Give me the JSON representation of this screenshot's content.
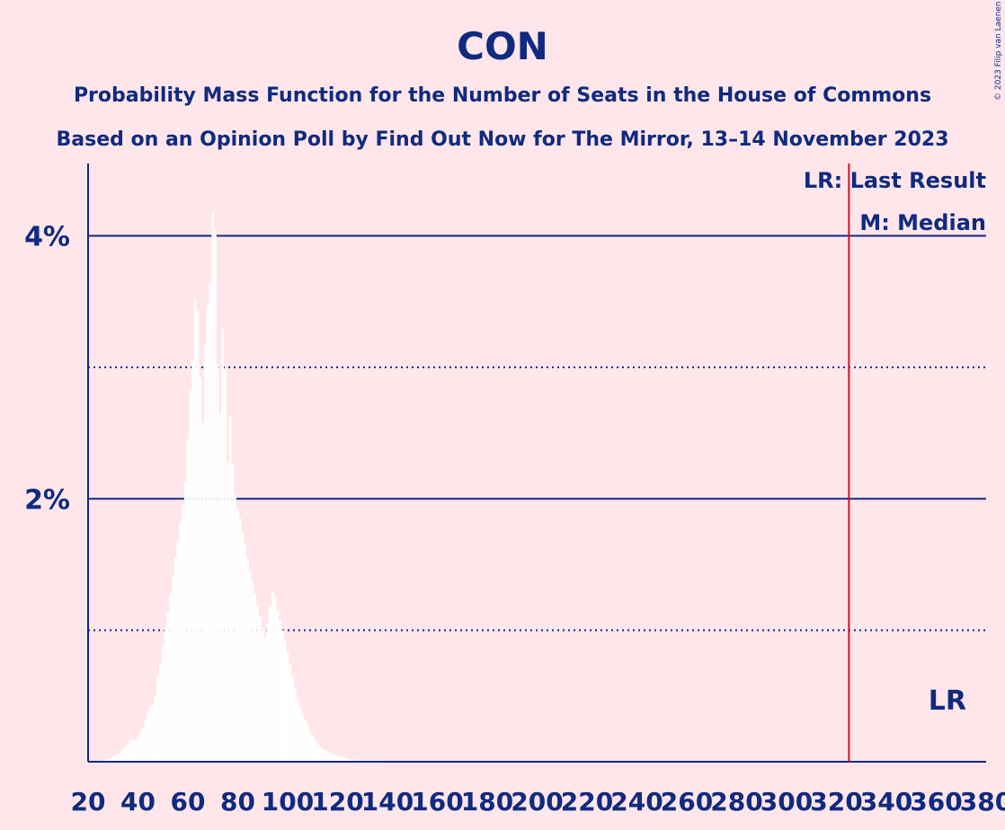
{
  "chart_data": {
    "type": "bar",
    "title": "CON",
    "subtitle": "Probability Mass Function for the Number of Seats in the House of Commons",
    "subtitle2": "Based on an Opinion Poll by Find Out Now for The Mirror, 13–14 November 2023",
    "copyright": "© 2023 Filip van Laenen",
    "xlabel": "",
    "ylabel": "",
    "xlim": [
      20,
      380
    ],
    "ylim": [
      0,
      0.0455
    ],
    "x_ticks": [
      20,
      40,
      60,
      80,
      100,
      120,
      140,
      160,
      180,
      200,
      220,
      240,
      260,
      280,
      300,
      320,
      340,
      360,
      380
    ],
    "y_ticks_solid": [
      {
        "value": 0.02,
        "label": "2%"
      },
      {
        "value": 0.04,
        "label": "4%"
      }
    ],
    "y_gridlines_dotted": [
      0.01,
      0.03
    ],
    "last_result": {
      "seat": 325,
      "label": "LR",
      "color": "#d0102a"
    },
    "legend": [
      "LR: Last Result",
      "M: Median"
    ],
    "colors": {
      "background": "#ffe6ea",
      "text": "#0f2a80",
      "bars": "#ffffff",
      "last_result_line": "#d0102a"
    },
    "seats_start": 25,
    "values": [
      0.0001,
      0.0001,
      0.0001,
      0.0002,
      0.0003,
      0.0004,
      0.0005,
      0.0006,
      0.0008,
      0.001,
      0.0012,
      0.0014,
      0.0016,
      0.0017,
      0.0016,
      0.0018,
      0.0022,
      0.0026,
      0.0031,
      0.0038,
      0.0042,
      0.0044,
      0.005,
      0.0065,
      0.0075,
      0.0088,
      0.0102,
      0.0114,
      0.0128,
      0.0141,
      0.0155,
      0.0168,
      0.0182,
      0.0196,
      0.0213,
      0.0245,
      0.0282,
      0.0305,
      0.0352,
      0.0343,
      0.0292,
      0.0258,
      0.0318,
      0.0347,
      0.0365,
      0.0418,
      0.0405,
      0.0302,
      0.0265,
      0.033,
      0.0298,
      0.0228,
      0.0263,
      0.0226,
      0.0203,
      0.0192,
      0.0185,
      0.0175,
      0.0166,
      0.0155,
      0.0146,
      0.0137,
      0.0128,
      0.0119,
      0.011,
      0.0102,
      0.0094,
      0.0105,
      0.0118,
      0.0129,
      0.0125,
      0.0115,
      0.0108,
      0.01,
      0.0092,
      0.0083,
      0.0074,
      0.0065,
      0.0056,
      0.0048,
      0.0042,
      0.0037,
      0.0032,
      0.0028,
      0.0024,
      0.002,
      0.0017,
      0.0014,
      0.0012,
      0.001,
      0.0009,
      0.0008,
      0.0007,
      0.0006,
      0.0005,
      0.0004,
      0.0004,
      0.0003,
      0.0003,
      0.0002,
      0.0002,
      0.0002,
      0.0001,
      0.0001,
      0.0001,
      0.0001,
      0.0001,
      0.0001,
      0.0001,
      0.0001,
      0.0001,
      0.0001,
      0.0001,
      0.0001,
      0.0001,
      0.0001
    ]
  }
}
